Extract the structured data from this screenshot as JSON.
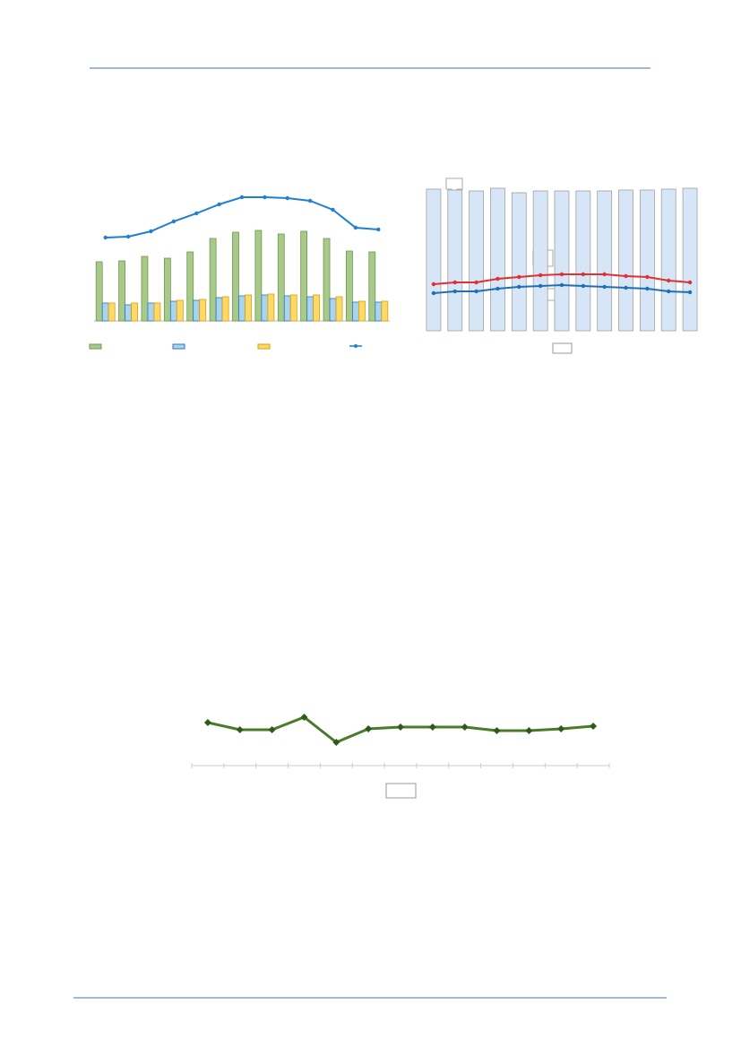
{
  "chart_data": [
    {
      "type": "combo",
      "categories": [
        null,
        null,
        null,
        null,
        null,
        null,
        null,
        null,
        null,
        null,
        null,
        null,
        null
      ],
      "ylim": [
        0,
        160
      ],
      "series": [
        {
          "type": "bar",
          "color": "#a9c98a",
          "values": [
            66,
            67,
            72,
            70,
            77,
            92,
            99,
            101,
            97,
            100,
            92,
            78,
            77
          ]
        },
        {
          "type": "bar",
          "color": "#a9d4f0",
          "values": [
            20,
            18,
            20,
            22,
            23,
            26,
            28,
            29,
            28,
            27,
            25,
            21,
            21
          ]
        },
        {
          "type": "bar",
          "color": "#ffd966",
          "values": [
            20,
            20,
            20,
            23,
            24,
            27,
            29,
            30,
            29,
            29,
            27,
            22,
            22
          ]
        },
        {
          "type": "line",
          "color": "#1f7fd1",
          "values": [
            93,
            94,
            100,
            111,
            120,
            130,
            138,
            138,
            137,
            134,
            124,
            104,
            102
          ]
        }
      ]
    },
    {
      "type": "combo",
      "categories": [
        null,
        null,
        null,
        null,
        null,
        null,
        null,
        null,
        null,
        null,
        null,
        null,
        null
      ],
      "ylim": [
        0,
        160
      ],
      "series": [
        {
          "type": "bar",
          "color": "#d6e6f7",
          "values": [
            158,
            157,
            156,
            159,
            154,
            156,
            156,
            156,
            156,
            157,
            157,
            158,
            159
          ]
        },
        {
          "type": "line",
          "color": "#e03030",
          "values": [
            52,
            54,
            54,
            58,
            60,
            62,
            63,
            63,
            63,
            61,
            60,
            56,
            54
          ]
        },
        {
          "type": "line",
          "color": "#1f6fb5",
          "values": [
            42,
            44,
            44,
            47,
            49,
            50,
            51,
            50,
            49,
            48,
            47,
            44,
            43
          ]
        }
      ]
    },
    {
      "type": "line",
      "categories": [
        null,
        null,
        null,
        null,
        null,
        null,
        null,
        null,
        null,
        null,
        null,
        null,
        null
      ],
      "ylim": [
        0,
        100
      ],
      "series": [
        {
          "type": "line",
          "color": "#4a7a2a",
          "values": [
            48,
            40,
            40,
            54,
            26,
            41,
            43,
            43,
            43,
            39,
            39,
            41,
            44
          ]
        }
      ]
    }
  ]
}
